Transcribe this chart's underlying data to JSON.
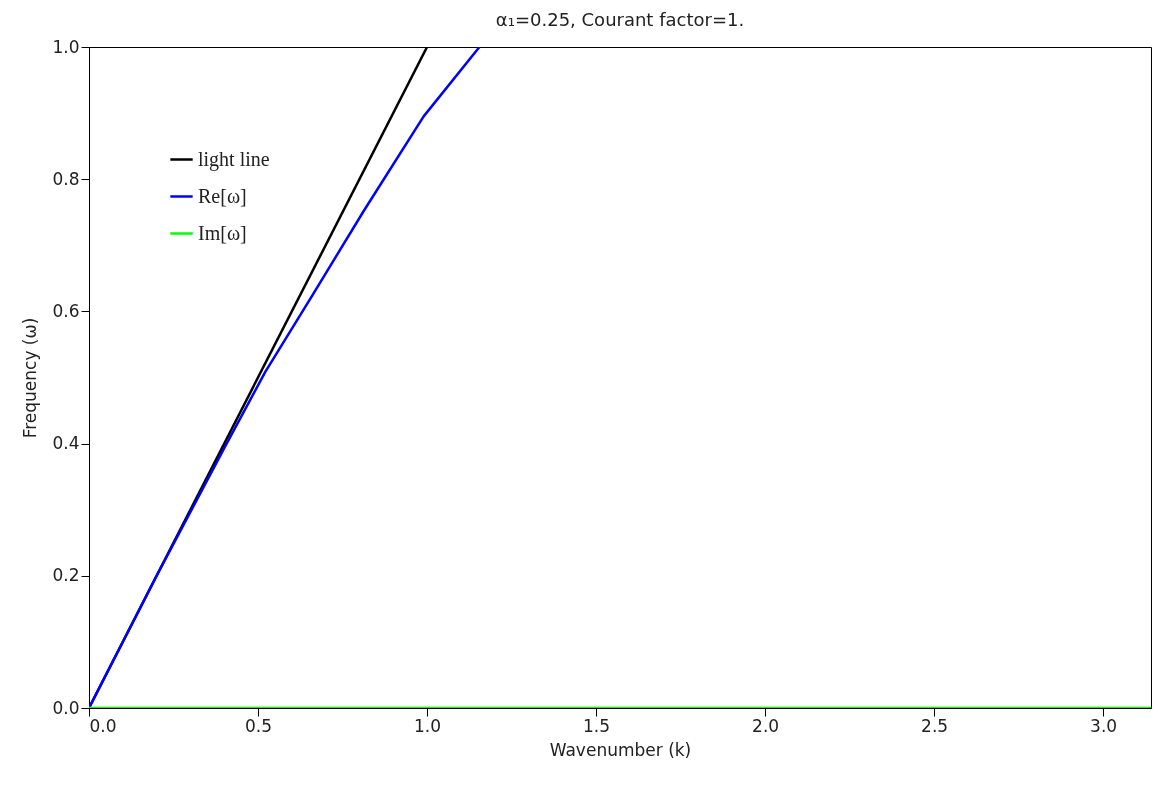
{
  "chart_data": {
    "type": "line",
    "title": "α₁=0.25, Courant factor=1.",
    "xlabel": "Wavenumber (k)",
    "ylabel": "Frequency (ω)",
    "xlim": [
      0,
      3.1416
    ],
    "ylim": [
      0,
      1
    ],
    "xticks": [
      {
        "value": 0,
        "label": "0.0"
      },
      0.5,
      {
        "value": 1,
        "label": "1.0"
      },
      1.5,
      {
        "value": 2,
        "label": "2.0"
      },
      2.5,
      {
        "value": 3,
        "label": "3.0"
      }
    ],
    "yticks": [
      {
        "value": 0,
        "label": "0.0"
      },
      0.2,
      0.4,
      0.6,
      0.8,
      {
        "value": 1,
        "label": "1.0"
      }
    ],
    "grid": false,
    "legend": "top left",
    "line_style": "solid",
    "marker": "none",
    "series": [
      {
        "name": "light line",
        "color": "#000000",
        "x": [
          0,
          1
        ],
        "values": [
          0,
          1
        ]
      },
      {
        "name": "Re[ω]",
        "color": "#0000ff",
        "x": [
          0,
          0.2,
          0.404,
          0.521,
          0.658,
          0.814,
          0.99,
          1.155
        ],
        "values": [
          0,
          0.2,
          0.397,
          0.508,
          0.622,
          0.753,
          0.895,
          1.0
        ]
      },
      {
        "name": "Im[ω]",
        "color": "#00ff00",
        "x": [
          0,
          3.1416
        ],
        "values": [
          0,
          0
        ]
      }
    ]
  }
}
